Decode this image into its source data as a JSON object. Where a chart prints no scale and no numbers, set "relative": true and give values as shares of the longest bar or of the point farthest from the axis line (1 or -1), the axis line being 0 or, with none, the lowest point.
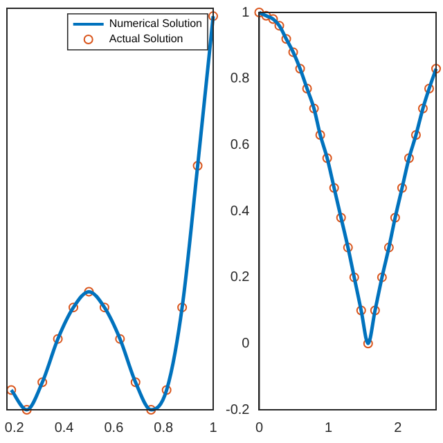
{
  "chart_data": [
    {
      "type": "line",
      "relative": true,
      "xlim": [
        0.17,
        1
      ],
      "xticks": [
        0.2,
        0.4,
        0.6,
        0.8,
        1
      ],
      "legend": "top right",
      "series": [
        {
          "name": "Numerical Solution",
          "marker": "none",
          "color": "#0072bd",
          "x": [
            0.1875,
            0.25,
            0.3125,
            0.375,
            0.4375,
            0.5,
            0.5625,
            0.625,
            0.6875,
            0.75,
            0.8125,
            0.875,
            0.9375,
            1
          ],
          "values": [
            0.05,
            0,
            0.07,
            0.18,
            0.26,
            0.3,
            0.26,
            0.18,
            0.07,
            0,
            0.05,
            0.26,
            0.62,
            1
          ]
        },
        {
          "name": "Actual Solution",
          "type": "scatter",
          "marker": "circle",
          "color": "#d95319",
          "x": [
            0.1875,
            0.25,
            0.3125,
            0.375,
            0.4375,
            0.5,
            0.5625,
            0.625,
            0.6875,
            0.75,
            0.8125,
            0.875,
            0.9375,
            1
          ],
          "values": [
            0.05,
            0,
            0.07,
            0.18,
            0.26,
            0.3,
            0.26,
            0.18,
            0.07,
            0,
            0.05,
            0.26,
            0.62,
            1
          ]
        }
      ]
    },
    {
      "type": "line",
      "xlim": [
        0,
        2.55
      ],
      "xticks": [
        0,
        1,
        2
      ],
      "ylim": [
        -0.2,
        1
      ],
      "yticks": [
        -0.2,
        0,
        0.2,
        0.4,
        0.6,
        0.8,
        1
      ],
      "series": [
        {
          "marker": "none",
          "color": "#0072bd",
          "x": [
            0,
            0.1,
            0.2,
            0.29,
            0.39,
            0.49,
            0.59,
            0.69,
            0.79,
            0.88,
            0.98,
            1.08,
            1.18,
            1.28,
            1.37,
            1.47,
            1.57,
            1.67,
            1.77,
            1.87,
            1.96,
            2.06,
            2.16,
            2.26,
            2.36,
            2.45,
            2.55
          ],
          "values": [
            1,
            0.99,
            0.98,
            0.96,
            0.92,
            0.88,
            0.83,
            0.77,
            0.71,
            0.63,
            0.56,
            0.47,
            0.38,
            0.29,
            0.2,
            0.1,
            0,
            0.1,
            0.2,
            0.29,
            0.38,
            0.47,
            0.56,
            0.63,
            0.71,
            0.77,
            0.83
          ]
        },
        {
          "type": "scatter",
          "marker": "circle",
          "color": "#d95319",
          "x": [
            0,
            0.1,
            0.2,
            0.29,
            0.39,
            0.49,
            0.59,
            0.69,
            0.79,
            0.88,
            0.98,
            1.08,
            1.18,
            1.28,
            1.37,
            1.47,
            1.57,
            1.67,
            1.77,
            1.87,
            1.96,
            2.06,
            2.16,
            2.26,
            2.36,
            2.45,
            2.55
          ],
          "values": [
            1,
            0.99,
            0.98,
            0.96,
            0.92,
            0.88,
            0.83,
            0.77,
            0.71,
            0.63,
            0.56,
            0.47,
            0.38,
            0.29,
            0.2,
            0.1,
            0,
            0.1,
            0.2,
            0.29,
            0.38,
            0.47,
            0.56,
            0.63,
            0.71,
            0.77,
            0.83
          ]
        }
      ]
    }
  ]
}
